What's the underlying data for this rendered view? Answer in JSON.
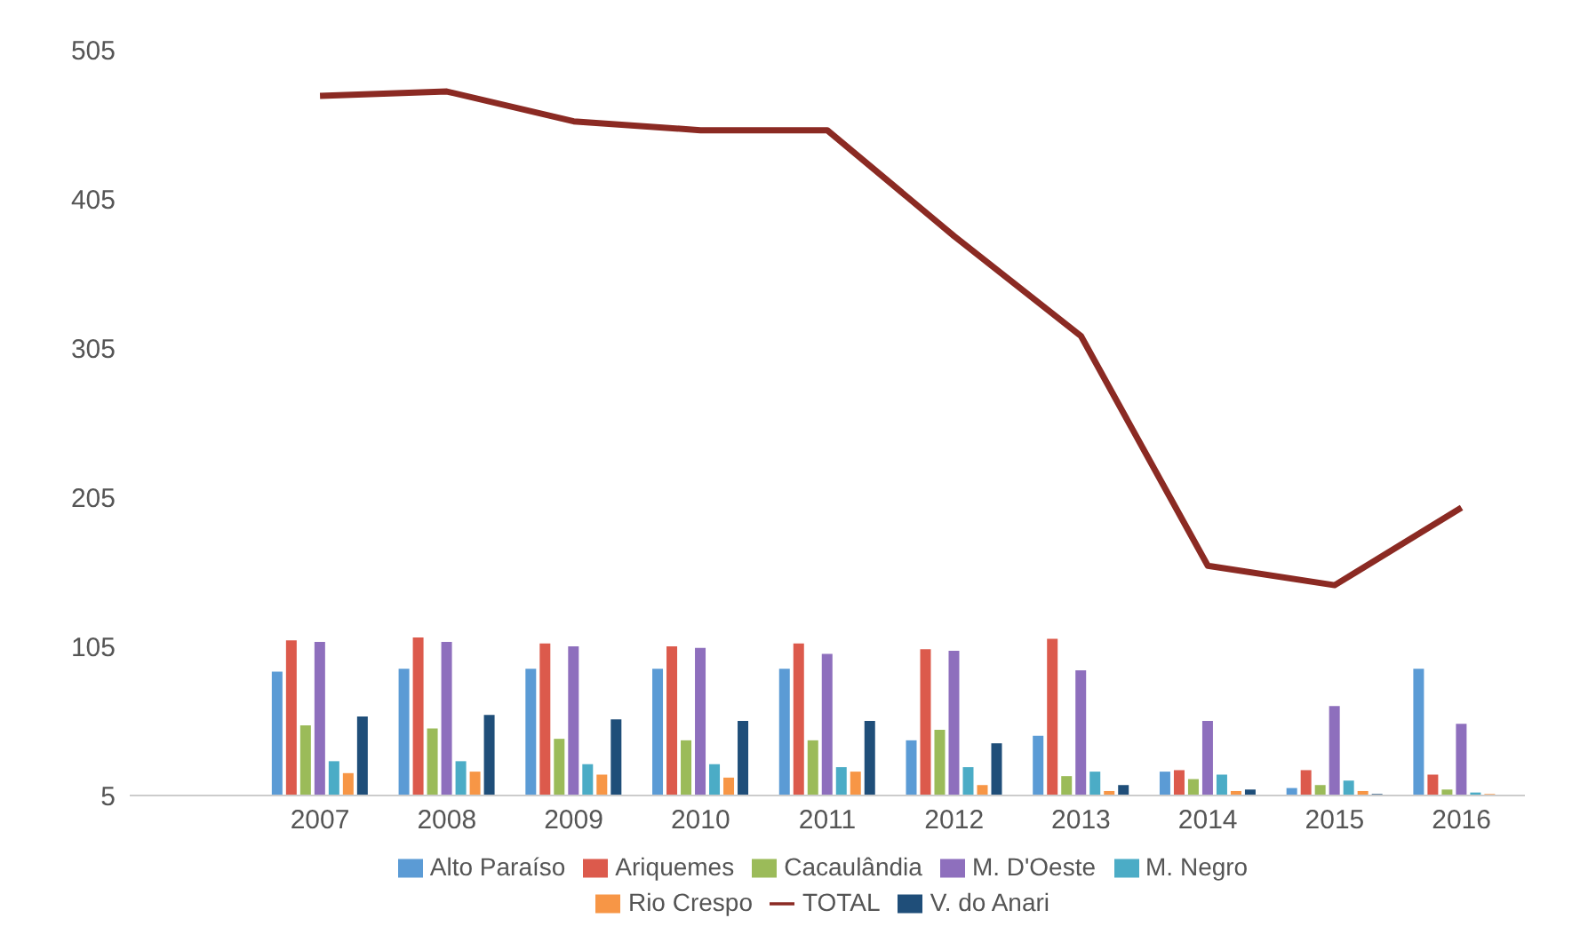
{
  "chart_data": {
    "type": "bar",
    "categories": [
      null,
      "2007",
      "2008",
      "2009",
      "2010",
      "2011",
      "2012",
      "2013",
      "2014",
      "2015",
      "2016"
    ],
    "ylim": [
      5,
      505
    ],
    "yticks": [
      5,
      105,
      205,
      305,
      405,
      505
    ],
    "grid": false,
    "legend": "bottom",
    "series": [
      {
        "name": "Alto Paraíso",
        "color": "#5b9bd5",
        "values": [
          null,
          88,
          90,
          90,
          90,
          90,
          42,
          45,
          21,
          10,
          90
        ]
      },
      {
        "name": "Ariquemes",
        "color": "#dc5a4c",
        "values": [
          null,
          109,
          111,
          107,
          105,
          107,
          103,
          110,
          22,
          22,
          19
        ]
      },
      {
        "name": "Cacaulândia",
        "color": "#9bbb59",
        "values": [
          null,
          52,
          50,
          43,
          42,
          42,
          49,
          18,
          16,
          12,
          9
        ]
      },
      {
        "name": "M. D'Oeste",
        "color": "#8e6fbd",
        "values": [
          null,
          108,
          108,
          105,
          104,
          100,
          102,
          89,
          55,
          65,
          53
        ]
      },
      {
        "name": "M. Negro",
        "color": "#4bacc6",
        "values": [
          null,
          28,
          28,
          26,
          26,
          24,
          24,
          21,
          19,
          15,
          7
        ]
      },
      {
        "name": "Rio Crespo",
        "color": "#f79646",
        "values": [
          null,
          20,
          21,
          19,
          17,
          21,
          12,
          8,
          8,
          8,
          6
        ]
      },
      {
        "name": "V. do Anari",
        "color": "#1f4e79",
        "values": [
          null,
          58,
          59,
          56,
          55,
          55,
          40,
          12,
          9,
          6,
          5
        ]
      },
      {
        "name": "TOTAL",
        "color": "#8b2a23",
        "type": "line",
        "values": [
          null,
          474,
          477,
          457,
          451,
          451,
          380,
          313,
          159,
          146,
          198
        ]
      }
    ]
  }
}
